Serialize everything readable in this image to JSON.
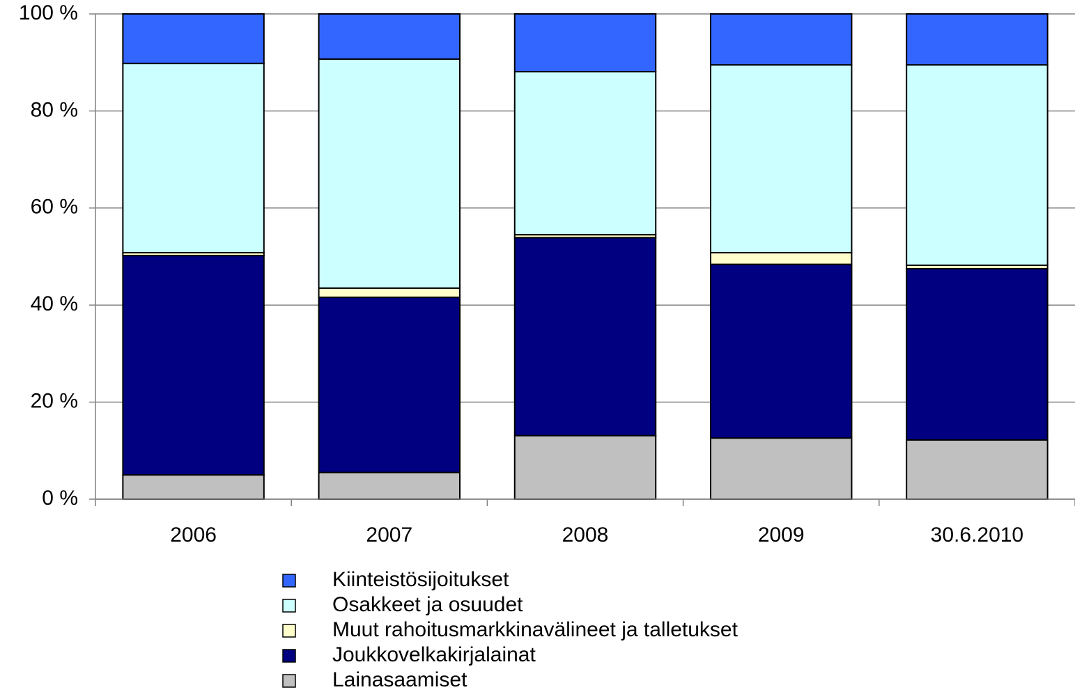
{
  "chart_data": {
    "type": "stacked_bar",
    "categories": [
      "2006",
      "2007",
      "2008",
      "2009",
      "30.6.2010"
    ],
    "series": [
      {
        "name": "Lainasaamiset",
        "color": "#c0c0c0",
        "values": [
          5.0,
          5.5,
          13.1,
          12.6,
          12.2
        ]
      },
      {
        "name": "Joukkovelkakirjalainat",
        "color": "#000080",
        "values": [
          45.2,
          36.1,
          40.8,
          35.8,
          35.3
        ]
      },
      {
        "name": "Muut rahoitusmarkkinavälineet ja talletukset",
        "color": "#ffffcc",
        "values": [
          0.6,
          1.9,
          0.6,
          2.4,
          0.7
        ]
      },
      {
        "name": "Osakkeet ja osuudet",
        "color": "#ccffff",
        "values": [
          39.0,
          47.2,
          33.6,
          38.7,
          41.3
        ]
      },
      {
        "name": "Kiinteistösijoitukset",
        "color": "#3366ff",
        "values": [
          10.2,
          9.3,
          11.9,
          10.5,
          10.5
        ]
      }
    ],
    "ylim": [
      0,
      100
    ],
    "yticks": [
      {
        "value": 0,
        "label": "0 %"
      },
      {
        "value": 20,
        "label": "20 %"
      },
      {
        "value": 40,
        "label": "40 %"
      },
      {
        "value": 60,
        "label": "60 %"
      },
      {
        "value": 80,
        "label": "80 %"
      },
      {
        "value": 100,
        "label": "100 %"
      }
    ],
    "grid": true
  }
}
